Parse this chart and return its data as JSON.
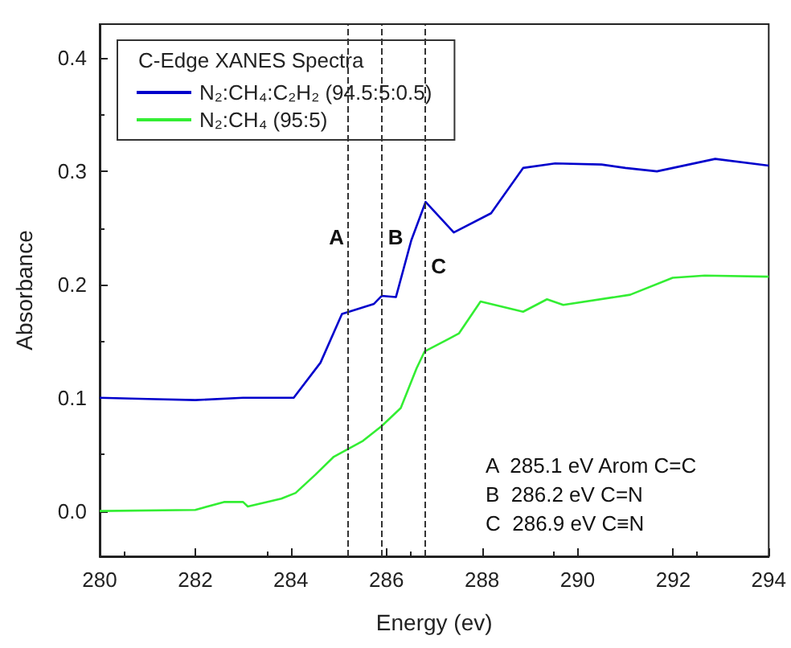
{
  "chart_data": {
    "type": "line",
    "xlabel": "Energy (ev)",
    "ylabel": "Absorbance",
    "legend_title": "C-Edge XANES Spectra",
    "legend": "top left",
    "grid": false,
    "marker": "none",
    "line_style": "solid",
    "xlim": [
      280,
      294
    ],
    "xticks": [
      280,
      282,
      284,
      286,
      288,
      290,
      292,
      294
    ],
    "ylim": [
      -0.04,
      0.43
    ],
    "yticks": [
      {
        "value": 0,
        "label": "0.0"
      },
      {
        "value": 0.1,
        "label": "0.1"
      },
      {
        "value": 0.2,
        "label": "0.2"
      },
      {
        "value": 0.3,
        "label": "0.3"
      },
      {
        "value": 0.4,
        "label": "0.4"
      }
    ],
    "series": [
      {
        "name": "N₂:CH₄:C₂H₂ (94.5:5:0.5)",
        "color": "#0000cc",
        "x": [
          280,
          281,
          282,
          283,
          284.06,
          284.62,
          285.07,
          285.74,
          285.9,
          286.2,
          286.52,
          286.82,
          287.41,
          288.19,
          288.86,
          289.53,
          290.5,
          291,
          291.66,
          292.88,
          294
        ],
        "values": [
          0.1,
          0.099,
          0.098,
          0.1,
          0.1,
          0.131,
          0.174,
          0.183,
          0.19,
          0.189,
          0.239,
          0.273,
          0.246,
          0.263,
          0.303,
          0.307,
          0.306,
          0.303,
          0.3,
          0.311,
          0.305
        ]
      },
      {
        "name": "N₂:CH₄ (95:5)",
        "color": "#33ee33",
        "x": [
          280,
          282,
          282.6,
          283,
          283.1,
          283.8,
          284.1,
          284.51,
          284.9,
          285.51,
          285.9,
          286.3,
          286.63,
          286.8,
          287.3,
          287.52,
          287.97,
          288.86,
          289.36,
          289.7,
          291.1,
          291.99,
          292.66,
          294
        ],
        "values": [
          0,
          0.001,
          0.008,
          0.008,
          0.004,
          0.011,
          0.016,
          0.032,
          0.048,
          0.062,
          0.075,
          0.091,
          0.126,
          0.141,
          0.152,
          0.157,
          0.185,
          0.176,
          0.187,
          0.182,
          0.191,
          0.206,
          0.208,
          0.207
        ]
      }
    ],
    "ref_lines": [
      {
        "axis": "x",
        "value": 285.2,
        "label": "A",
        "color": "#333333",
        "line_style": "dashed"
      },
      {
        "axis": "x",
        "value": 285.9,
        "label": "B",
        "color": "#333333",
        "line_style": "dashed"
      },
      {
        "axis": "x",
        "value": 286.8,
        "label": "C",
        "color": "#333333",
        "line_style": "dashed"
      }
    ],
    "annotations": [
      "A  285.1 eV Arom C=C",
      "B  286.2 eV C=N",
      "C  286.9 eV C≡N"
    ]
  }
}
